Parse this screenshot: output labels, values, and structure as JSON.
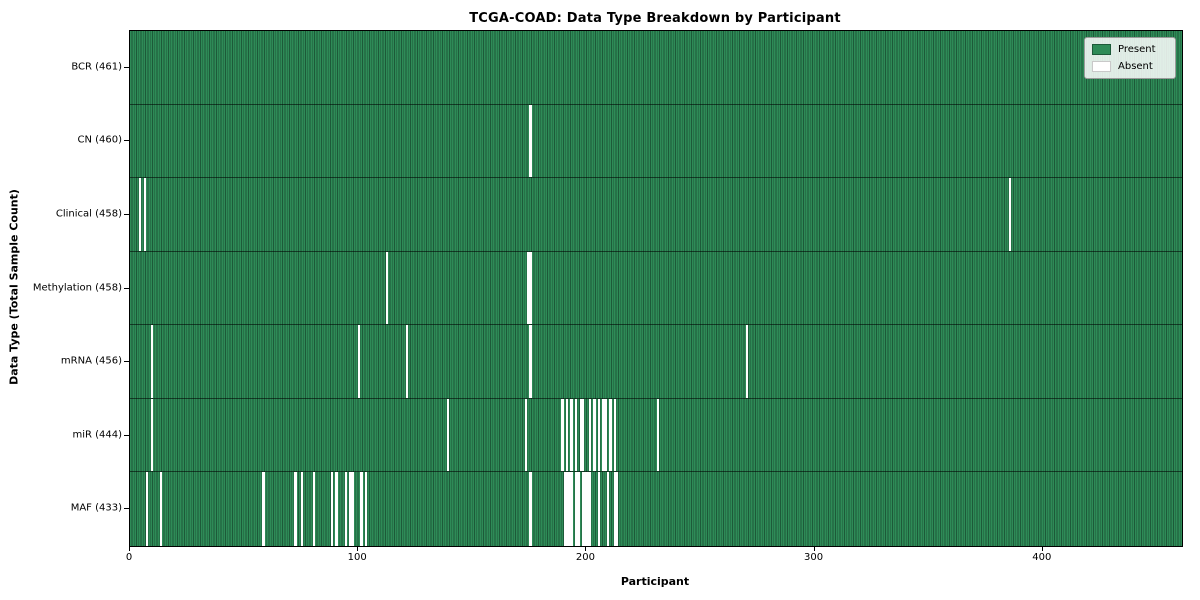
{
  "chart_data": {
    "type": "heatmap",
    "title": "TCGA-COAD: Data Type Breakdown by Participant",
    "xlabel": "Participant",
    "ylabel": "Data Type (Total Sample Count)",
    "n_participants": 461,
    "xlim": [
      0,
      461
    ],
    "xticks": [
      0,
      100,
      200,
      300,
      400
    ],
    "grid": false,
    "legend_position": "upper right",
    "cell_states": {
      "present_label": "Present",
      "absent_label": "Absent"
    },
    "rows": [
      {
        "label": "BCR (461)",
        "data_type": "BCR",
        "present_count": 461,
        "absent_participants": []
      },
      {
        "label": "CN (460)",
        "data_type": "CN",
        "present_count": 460,
        "absent_participants": [
          175
        ]
      },
      {
        "label": "Clinical (458)",
        "data_type": "Clinical",
        "present_count": 458,
        "absent_participants": [
          4,
          6,
          385
        ]
      },
      {
        "label": "Methylation (458)",
        "data_type": "Methylation",
        "present_count": 458,
        "absent_participants": [
          112,
          174,
          175
        ]
      },
      {
        "label": "mRNA (456)",
        "data_type": "mRNA",
        "present_count": 456,
        "absent_participants": [
          9,
          100,
          121,
          175,
          270
        ]
      },
      {
        "label": "miR (444)",
        "data_type": "miR",
        "present_count": 444,
        "absent_participants": [
          9,
          139,
          173,
          189,
          191,
          193,
          195,
          197,
          198,
          201,
          203,
          205,
          207,
          208,
          210,
          212,
          231
        ]
      },
      {
        "label": "MAF (433)",
        "data_type": "MAF",
        "present_count": 433,
        "absent_participants": [
          7,
          13,
          58,
          72,
          75,
          80,
          88,
          90,
          94,
          96,
          97,
          101,
          103,
          175,
          190,
          191,
          192,
          193,
          195,
          196,
          198,
          199,
          200,
          201,
          205,
          209,
          212,
          213
        ]
      }
    ],
    "legend": [
      {
        "label": "Present",
        "color": "#2e8b57"
      },
      {
        "label": "Absent",
        "color": "#ffffff"
      }
    ],
    "colors": {
      "present": "#2e8b57",
      "bar_edge": "#1d5a39",
      "absent": "#ffffff",
      "axis": "#000000"
    }
  }
}
